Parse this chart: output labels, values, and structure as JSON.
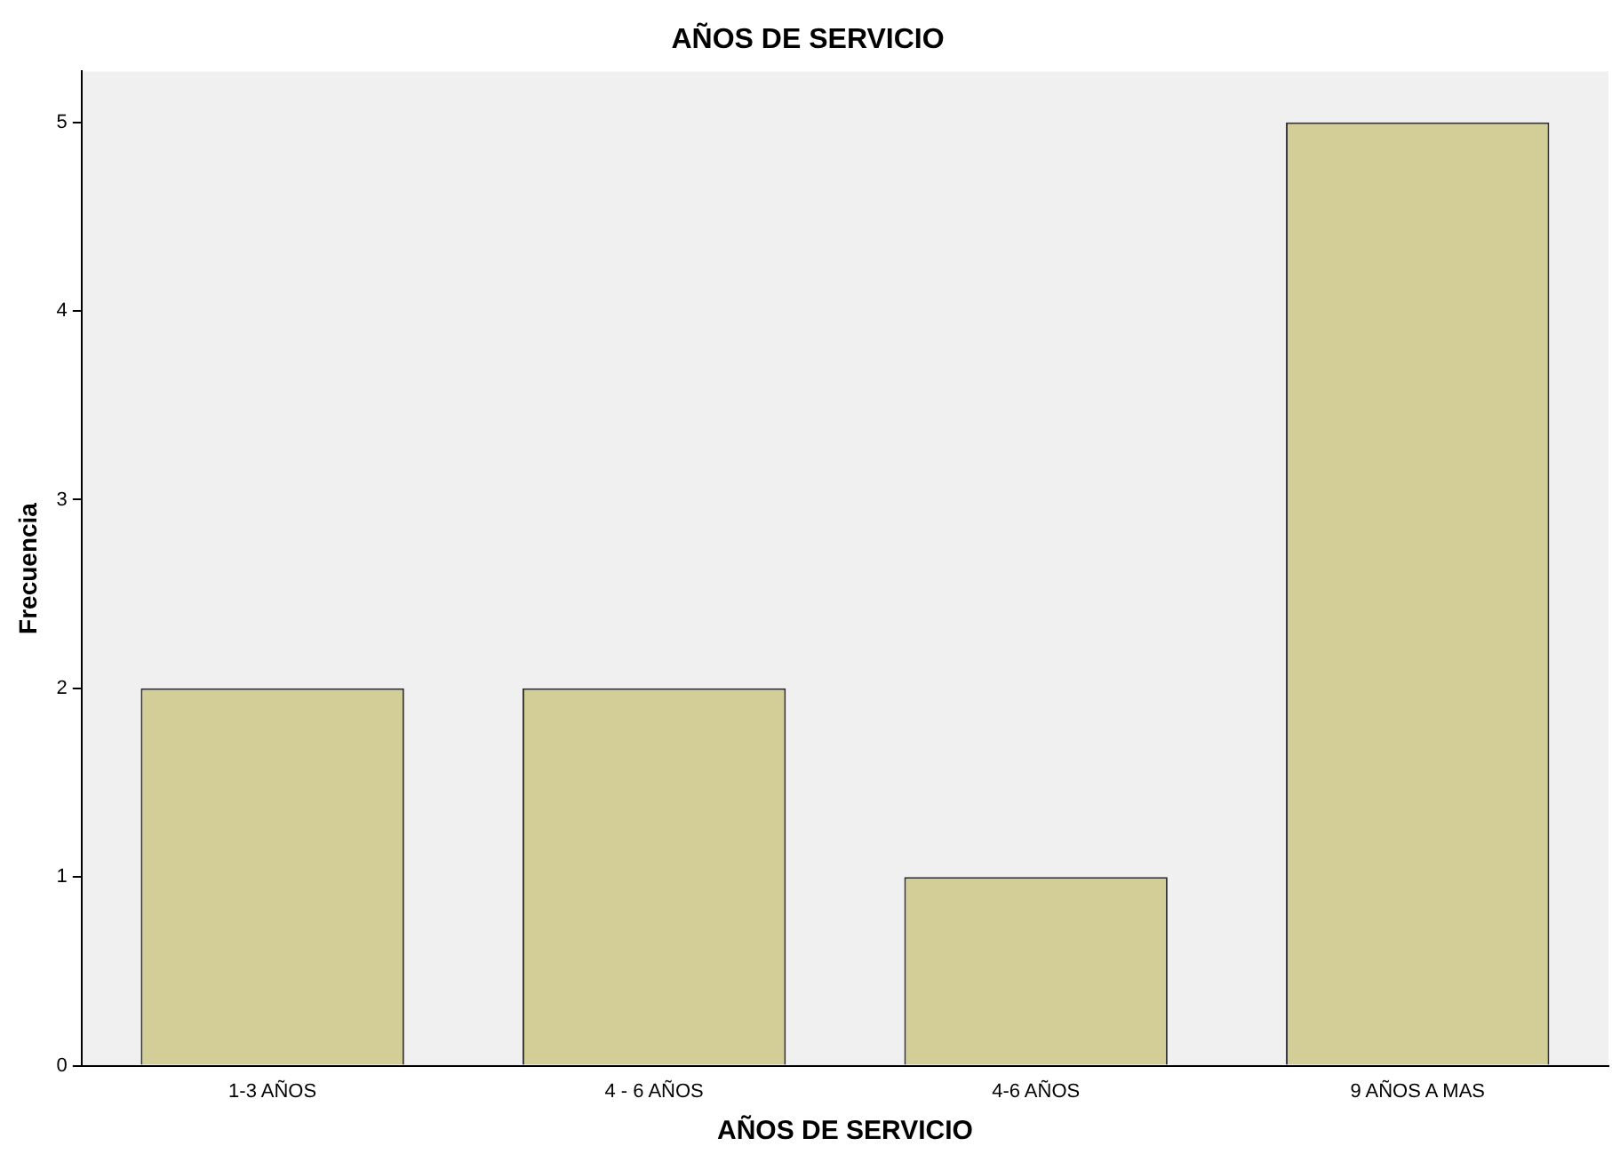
{
  "chart_data": {
    "type": "bar",
    "title": "AÑOS DE SERVICIO",
    "xlabel": "AÑOS DE SERVICIO",
    "ylabel": "Frecuencia",
    "categories": [
      "1-3 AÑOS",
      "4 - 6 AÑOS",
      "4-6 AÑOS",
      "9 AÑOS A MAS"
    ],
    "values": [
      2,
      2,
      1,
      5
    ],
    "color": "#d3ce97",
    "ylim": [
      0,
      5.27
    ],
    "yticks": [
      0,
      1,
      2,
      3,
      4,
      5
    ],
    "grid": false,
    "legend": false
  }
}
